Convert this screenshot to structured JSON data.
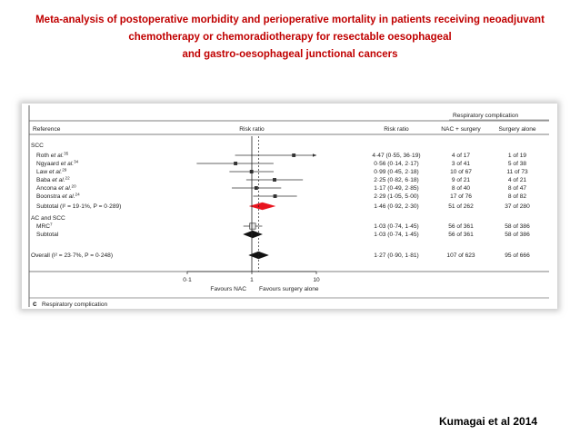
{
  "slide": {
    "title_lines": [
      "Meta-analysis of postoperative morbidity and perioperative mortality in patients receiving neoadjuvant",
      "chemotherapy or chemoradiotherapy for resectable oesophageal",
      "and gastro-oesophageal junctional cancers"
    ],
    "citation": "Kumagai et al 2014"
  },
  "chart_data": {
    "type": "forest",
    "header": {
      "reference": "Reference",
      "risk_ratio_plot": "Risk ratio",
      "risk_ratio_col": "Risk ratio",
      "group_title": "Respiratory complication",
      "col_nac": "NAC + surgery",
      "col_surgery": "Surgery alone"
    },
    "x_scale": "log",
    "x_ticks": [
      "0·1",
      "1",
      "10"
    ],
    "x_tick_values": [
      0.1,
      1,
      10
    ],
    "xlim": [
      0.1,
      10
    ],
    "x_left_label": "Favours NAC",
    "x_right_label": "Favours surgery alone",
    "panel_label": "c",
    "panel_title": "Respiratory complication",
    "rows": [
      {
        "kind": "group",
        "label": "SCC"
      },
      {
        "kind": "study",
        "study": "Roth",
        "etal": "et al.",
        "ref": "35",
        "rr": 4.47,
        "lo": 0.55,
        "hi": 36.19,
        "rr_text": "4·47 (0·55, 36·19)",
        "nac": "4 of 17",
        "surgery": "1 of 19"
      },
      {
        "kind": "study",
        "study": "Ngyaard",
        "etal": "et al.",
        "ref": "34",
        "rr": 0.56,
        "lo": 0.14,
        "hi": 2.17,
        "rr_text": "0·56 (0·14, 2·17)",
        "nac": "3 of 41",
        "surgery": "5 of 38"
      },
      {
        "kind": "study",
        "study": "Law",
        "etal": "et al.",
        "ref": "29",
        "rr": 0.99,
        "lo": 0.45,
        "hi": 2.18,
        "rr_text": "0·99 (0·45, 2·18)",
        "nac": "10 of 67",
        "surgery": "11 of 73"
      },
      {
        "kind": "study",
        "study": "Baba",
        "etal": "et al.",
        "ref": "22",
        "rr": 2.25,
        "lo": 0.82,
        "hi": 6.18,
        "rr_text": "2·25 (0·82, 6·18)",
        "nac": "9 of 21",
        "surgery": "4 of 21"
      },
      {
        "kind": "study",
        "study": "Ancona",
        "etal": "et al.",
        "ref": "20",
        "rr": 1.17,
        "lo": 0.49,
        "hi": 2.85,
        "rr_text": "1·17 (0·49, 2·85)",
        "nac": "8 of 40",
        "surgery": "8 of 47"
      },
      {
        "kind": "study",
        "study": "Boonstra",
        "etal": "et al.",
        "ref": "24",
        "rr": 2.29,
        "lo": 1.05,
        "hi": 5.0,
        "rr_text": "2·29 (1·05, 5·00)",
        "nac": "17 of 76",
        "surgery": "8 of 82"
      },
      {
        "kind": "subtotal",
        "label": "Subtotal (I² = 19·1%, P = 0·289)",
        "rr": 1.46,
        "lo": 0.92,
        "hi": 2.3,
        "rr_text": "1·46 (0·92, 2·30)",
        "nac": "51 of 262",
        "surgery": "37 of 280",
        "color": "#e8141e"
      },
      {
        "kind": "group",
        "label": "AC and SCC"
      },
      {
        "kind": "study",
        "study": "MRC",
        "etal": "",
        "ref": "7",
        "rr": 1.03,
        "lo": 0.74,
        "hi": 1.45,
        "rr_text": "1·03 (0·74, 1·45)",
        "nac": "56 of 361",
        "surgery": "58 of 386"
      },
      {
        "kind": "subtotal",
        "label": "Subtotal",
        "rr": 1.03,
        "lo": 0.74,
        "hi": 1.45,
        "rr_text": "1·03 (0·74, 1·45)",
        "nac": "56 of 361",
        "surgery": "58 of 386",
        "color": "#111111"
      },
      {
        "kind": "overall",
        "label": "Overall (I² = 23·7%, P = 0·248)",
        "rr": 1.27,
        "lo": 0.9,
        "hi": 1.81,
        "rr_text": "1·27 (0·90, 1·81)",
        "nac": "107 of 623",
        "surgery": "95 of 666",
        "color": "#111111"
      }
    ]
  }
}
